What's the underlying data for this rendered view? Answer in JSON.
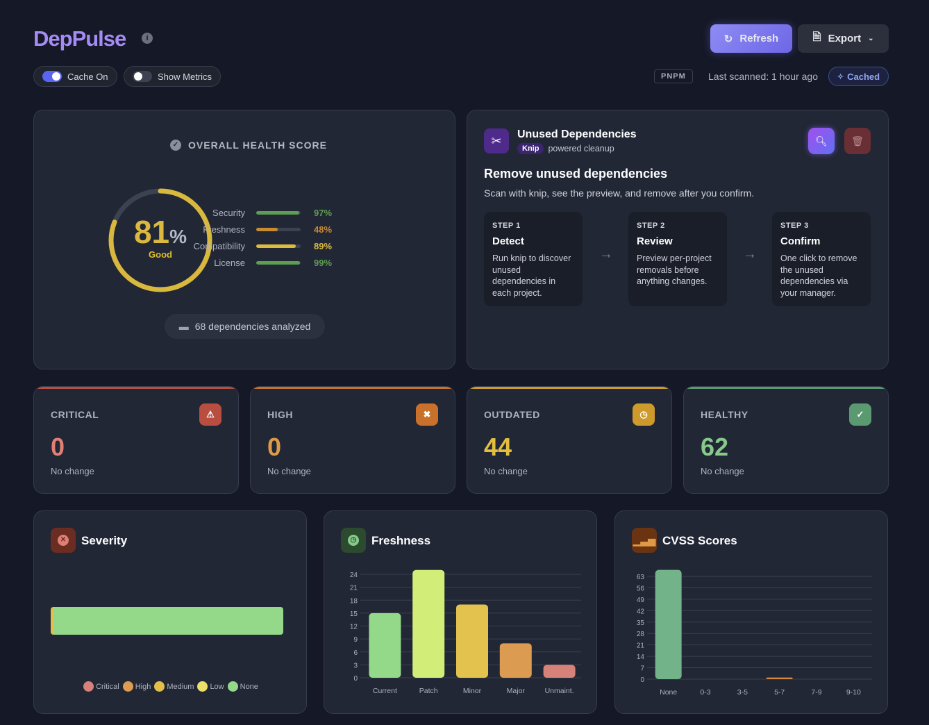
{
  "header": {
    "title": "DepPulse",
    "refresh_label": "Refresh",
    "export_label": "Export",
    "cache_toggle": {
      "label": "Cache On",
      "on": true
    },
    "metrics_toggle": {
      "label": "Show Metrics",
      "on": false
    },
    "package_manager": "PNPM",
    "last_scanned": "Last scanned: 1 hour ago",
    "cache_status": "Cached"
  },
  "health": {
    "title": "OVERALL HEALTH SCORE",
    "score": "81",
    "unit": "%",
    "score_value": 81,
    "rating": "Good",
    "metrics": [
      {
        "label": "Security",
        "value": "97%",
        "pct": 97,
        "color": "#5e9e52"
      },
      {
        "label": "Freshness",
        "value": "48%",
        "pct": 48,
        "color": "#c98a30"
      },
      {
        "label": "Compatibility",
        "value": "89%",
        "pct": 89,
        "color": "#dcbc3e"
      },
      {
        "label": "License",
        "value": "99%",
        "pct": 99,
        "color": "#5e9e52"
      }
    ],
    "deps_analyzed": "68 dependencies analyzed"
  },
  "unused": {
    "title": "Unused Dependencies",
    "badge": "Knip",
    "subtitle": "powered cleanup",
    "heading": "Remove unused dependencies",
    "description": "Scan with knip, see the preview, and remove after you confirm.",
    "steps": [
      {
        "num": "STEP 1",
        "title": "Detect",
        "desc": "Run knip to discover unused dependencies in each project."
      },
      {
        "num": "STEP 2",
        "title": "Review",
        "desc": "Preview per-project removals before anything changes."
      },
      {
        "num": "STEP 3",
        "title": "Confirm",
        "desc": "One click to remove the unused dependencies via your manager."
      }
    ]
  },
  "stats": [
    {
      "label": "CRITICAL",
      "value": "0",
      "change": "No change",
      "color": "#e07f74",
      "icon_bg": "#b84e3f",
      "icon": "warning-icon"
    },
    {
      "label": "HIGH",
      "value": "0",
      "change": "No change",
      "color": "#e09a45",
      "icon_bg": "#c9702a",
      "icon": "x-circle-icon"
    },
    {
      "label": "OUTDATED",
      "value": "44",
      "change": "No change",
      "color": "#e3bf40",
      "icon_bg": "#cf9a2c",
      "icon": "clock-icon"
    },
    {
      "label": "HEALTHY",
      "value": "62",
      "change": "No change",
      "color": "#86c98a",
      "icon_bg": "#5b9a70",
      "icon": "check-circle-icon"
    }
  ],
  "charts": {
    "severity_title": "Severity",
    "freshness_title": "Freshness",
    "cvss_title": "CVSS Scores"
  },
  "chart_data": [
    {
      "type": "bar",
      "orientation": "horizontal-stacked",
      "title": "Severity",
      "series": [
        {
          "name": "Critical",
          "values": [
            0
          ],
          "color": "#d8817a"
        },
        {
          "name": "High",
          "values": [
            0
          ],
          "color": "#de9c52"
        },
        {
          "name": "Medium",
          "values": [
            1
          ],
          "color": "#e3bf4a"
        },
        {
          "name": "Low",
          "values": [
            0
          ],
          "color": "#ece06a"
        },
        {
          "name": "None",
          "values": [
            67
          ],
          "color": "#94d889"
        }
      ],
      "legend": "bottom"
    },
    {
      "type": "bar",
      "title": "Freshness",
      "categories": [
        "Current",
        "Patch",
        "Minor",
        "Major",
        "Unmaint."
      ],
      "values": [
        15,
        25,
        17,
        8,
        3
      ],
      "colors": [
        "#94d889",
        "#d2ee78",
        "#e3c24e",
        "#db9b50",
        "#d6827a"
      ],
      "yticks": [
        0,
        3,
        6,
        9,
        12,
        15,
        18,
        21,
        24
      ],
      "ylim": [
        0,
        25
      ],
      "grid": true
    },
    {
      "type": "bar",
      "title": "CVSS Scores",
      "categories": [
        "None",
        "0-3",
        "3-5",
        "5-7",
        "7-9",
        "9-10"
      ],
      "values": [
        67,
        0,
        0,
        1,
        0,
        0
      ],
      "colors": [
        "#72b389",
        "#72b389",
        "#72b389",
        "#d58a3a",
        "#72b389",
        "#72b389"
      ],
      "yticks": [
        0,
        7,
        14,
        21,
        28,
        35,
        42,
        49,
        56,
        63
      ],
      "ylim": [
        0,
        67
      ],
      "grid": true
    }
  ]
}
